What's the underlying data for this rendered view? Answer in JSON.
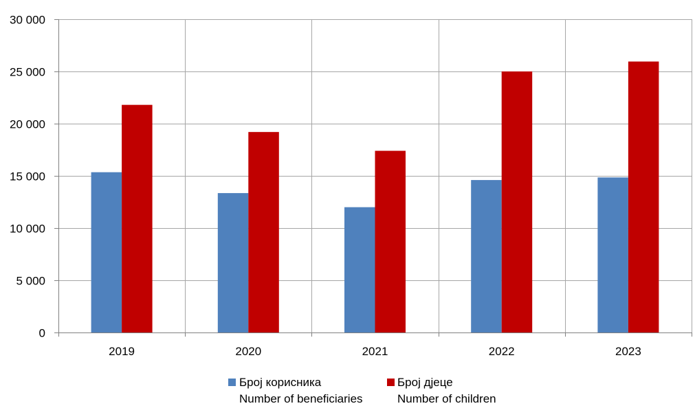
{
  "chart_data": {
    "type": "bar",
    "categories": [
      "2019",
      "2020",
      "2021",
      "2022",
      "2023"
    ],
    "series": [
      {
        "name": "Број корисника",
        "name_en": "Number of beneficiaries",
        "color": "#4F81BD",
        "values": [
          15350,
          13350,
          12000,
          14600,
          14850
        ]
      },
      {
        "name": "Број дјеце",
        "name_en": "Number of children",
        "color": "#C00000",
        "values": [
          21800,
          19200,
          17400,
          25000,
          25950
        ]
      }
    ],
    "ylim": [
      0,
      30000
    ],
    "yticks": [
      {
        "value": 0,
        "label": "0"
      },
      {
        "value": 5000,
        "label": "5 000"
      },
      {
        "value": 10000,
        "label": "10 000"
      },
      {
        "value": 15000,
        "label": "15 000"
      },
      {
        "value": 20000,
        "label": "20 000"
      },
      {
        "value": 25000,
        "label": "25 000"
      },
      {
        "value": 30000,
        "label": "30 000"
      }
    ],
    "grid": true,
    "legend_position": "bottom"
  }
}
